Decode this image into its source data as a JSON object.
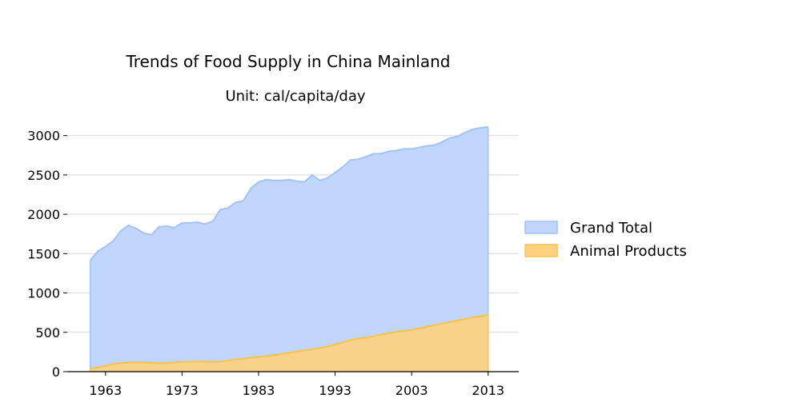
{
  "chart_data": {
    "type": "area",
    "title": "Trends of Food Supply in China Mainland",
    "subtitle": "Unit: cal/capita/day",
    "xlabel": "",
    "ylabel": "",
    "xlim": [
      1958,
      2017
    ],
    "ylim": [
      0,
      3200
    ],
    "x_ticks": [
      1963,
      1973,
      1983,
      1993,
      2003,
      2013
    ],
    "y_ticks": [
      0,
      500,
      1000,
      1500,
      2000,
      2500,
      3000
    ],
    "grid": "horizontal",
    "legend_position": "right",
    "x": [
      1961,
      1962,
      1963,
      1964,
      1965,
      1966,
      1967,
      1968,
      1969,
      1970,
      1971,
      1972,
      1973,
      1974,
      1975,
      1976,
      1977,
      1978,
      1979,
      1980,
      1981,
      1982,
      1983,
      1984,
      1985,
      1986,
      1987,
      1988,
      1989,
      1990,
      1991,
      1992,
      1993,
      1994,
      1995,
      1996,
      1997,
      1998,
      1999,
      2000,
      2001,
      2002,
      2003,
      2004,
      2005,
      2006,
      2007,
      2008,
      2009,
      2010,
      2011,
      2012,
      2013
    ],
    "series": [
      {
        "name": "Grand Total",
        "color": "#a4c2f4",
        "fill": "#c0d6fc",
        "values": [
          1415,
          1530,
          1590,
          1660,
          1790,
          1860,
          1820,
          1760,
          1740,
          1840,
          1850,
          1830,
          1890,
          1890,
          1900,
          1875,
          1910,
          2060,
          2080,
          2150,
          2170,
          2330,
          2410,
          2440,
          2430,
          2430,
          2440,
          2420,
          2410,
          2500,
          2430,
          2460,
          2530,
          2600,
          2690,
          2700,
          2730,
          2770,
          2770,
          2800,
          2810,
          2830,
          2830,
          2850,
          2870,
          2880,
          2920,
          2970,
          2990,
          3040,
          3080,
          3100,
          3110
        ]
      },
      {
        "name": "Animal Products",
        "color": "#ffc34d",
        "fill": "#ffd27f",
        "values": [
          40,
          55,
          75,
          95,
          110,
          115,
          118,
          115,
          112,
          108,
          110,
          118,
          125,
          125,
          128,
          128,
          126,
          128,
          140,
          155,
          165,
          175,
          185,
          195,
          210,
          225,
          240,
          255,
          270,
          285,
          300,
          320,
          345,
          370,
          400,
          420,
          430,
          450,
          470,
          490,
          505,
          515,
          530,
          550,
          570,
          590,
          610,
          630,
          650,
          670,
          690,
          705,
          720
        ]
      }
    ]
  }
}
